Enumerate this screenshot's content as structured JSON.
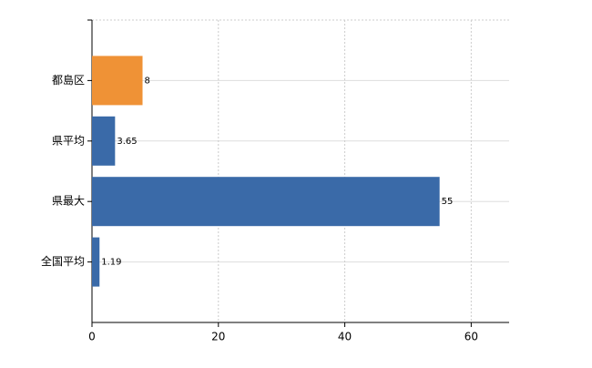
{
  "chart_data": {
    "type": "hbar",
    "categories": [
      "都島区",
      "県平均",
      "県最大",
      "全国平均"
    ],
    "values": [
      8,
      3.65,
      55,
      1.19
    ],
    "colors": [
      "#ef9236",
      "#3a6aa8",
      "#3a6aa8",
      "#3a6aa8"
    ],
    "xlim": [
      0,
      66
    ],
    "xticks": [
      0,
      20,
      40,
      60
    ],
    "grid": true
  }
}
